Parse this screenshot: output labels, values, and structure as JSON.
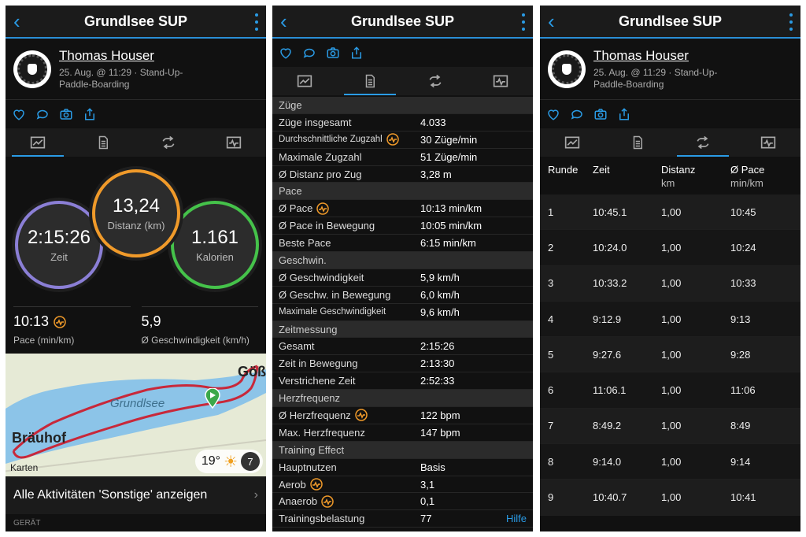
{
  "activity_title": "Grundlsee SUP",
  "user": {
    "name": "Thomas Houser",
    "meta": "25. Aug. @ 11:29 · Stand-Up-Paddle-Boarding"
  },
  "summary": {
    "time_value": "2:15:26",
    "time_label": "Zeit",
    "distance_value": "13,24",
    "distance_label": "Distanz (km)",
    "calories_value": "1.161",
    "calories_label": "Kalorien",
    "pace_value": "10:13",
    "pace_label": "Pace (min/km)",
    "speed_value": "5,9",
    "speed_label": "Ø Geschwindigkeit (km/h)"
  },
  "map": {
    "lake_label": "Grundlsee",
    "place_left": "Bräuhof",
    "place_right": "Göß",
    "attribution": "Karten",
    "temperature": "19°",
    "wind": "7"
  },
  "more_link": "Alle Aktivitäten 'Sonstige' anzeigen",
  "section_label": "GERÄT",
  "details": [
    {
      "type": "h",
      "k": "Züge"
    },
    {
      "k": "Züge insgesamt",
      "v": "4.033"
    },
    {
      "k": "Durchschnittliche Zugzahl",
      "v": "30 Züge/min",
      "icon": true,
      "small": true
    },
    {
      "k": "Maximale Zugzahl",
      "v": "51 Züge/min"
    },
    {
      "k": "Ø Distanz pro Zug",
      "v": "3,28 m"
    },
    {
      "type": "h",
      "k": "Pace"
    },
    {
      "k": "Ø Pace",
      "v": "10:13 min/km",
      "icon": true
    },
    {
      "k": "Ø Pace in Bewegung",
      "v": "10:05 min/km"
    },
    {
      "k": "Beste Pace",
      "v": "6:15 min/km"
    },
    {
      "type": "h",
      "k": "Geschwin."
    },
    {
      "k": "Ø Geschwindigkeit",
      "v": "5,9 km/h"
    },
    {
      "k": "Ø Geschw. in Bewegung",
      "v": "6,0 km/h"
    },
    {
      "k": "Maximale Geschwindigkeit",
      "v": "9,6 km/h",
      "small": true
    },
    {
      "type": "h",
      "k": "Zeitmessung"
    },
    {
      "k": "Gesamt",
      "v": "2:15:26"
    },
    {
      "k": "Zeit in Bewegung",
      "v": "2:13:30"
    },
    {
      "k": "Verstrichene Zeit",
      "v": "2:52:33"
    },
    {
      "type": "h",
      "k": "Herzfrequenz"
    },
    {
      "k": "Ø Herzfrequenz",
      "v": "122 bpm",
      "icon": true
    },
    {
      "k": "Max. Herzfrequenz",
      "v": "147 bpm"
    },
    {
      "type": "h",
      "k": "Training Effect"
    },
    {
      "k": "Hauptnutzen",
      "v": "Basis"
    },
    {
      "k": "Aerob",
      "v": "3,1",
      "icon": true
    },
    {
      "k": "Anaerob",
      "v": "0,1",
      "icon": true
    },
    {
      "k": "Trainingsbelastung",
      "v": "77",
      "help": "Hilfe"
    }
  ],
  "laps": {
    "headers": {
      "lap": "Runde",
      "time": "Zeit",
      "dist": "Distanz",
      "dist_unit": "km",
      "pace": "Ø Pace",
      "pace_unit": "min/km"
    },
    "rows": [
      {
        "n": "1",
        "t": "10:45.1",
        "d": "1,00",
        "p": "10:45"
      },
      {
        "n": "2",
        "t": "10:24.0",
        "d": "1,00",
        "p": "10:24"
      },
      {
        "n": "3",
        "t": "10:33.2",
        "d": "1,00",
        "p": "10:33"
      },
      {
        "n": "4",
        "t": "9:12.9",
        "d": "1,00",
        "p": "9:13"
      },
      {
        "n": "5",
        "t": "9:27.6",
        "d": "1,00",
        "p": "9:28"
      },
      {
        "n": "6",
        "t": "11:06.1",
        "d": "1,00",
        "p": "11:06"
      },
      {
        "n": "7",
        "t": "8:49.2",
        "d": "1,00",
        "p": "8:49"
      },
      {
        "n": "8",
        "t": "9:14.0",
        "d": "1,00",
        "p": "9:14"
      },
      {
        "n": "9",
        "t": "10:40.7",
        "d": "1,00",
        "p": "10:41"
      }
    ]
  }
}
